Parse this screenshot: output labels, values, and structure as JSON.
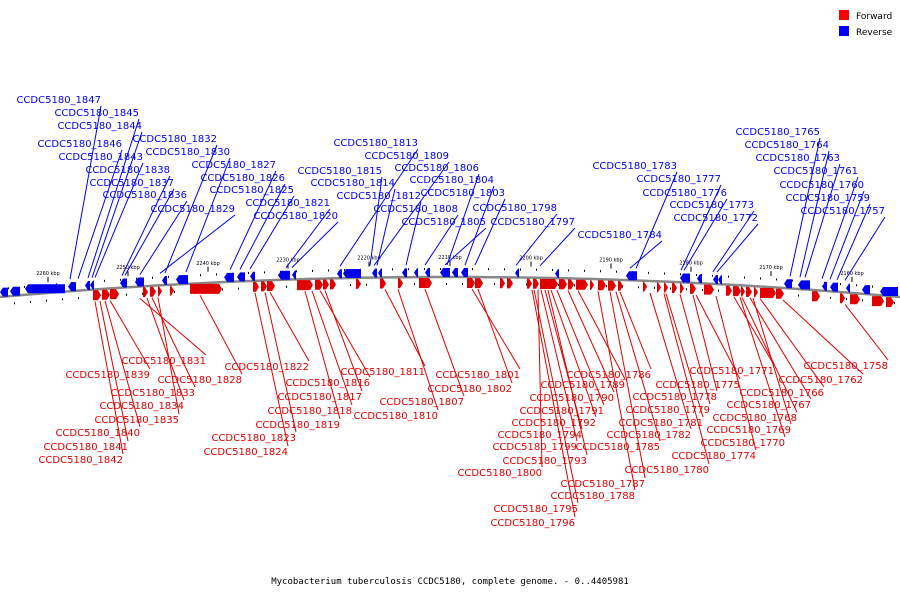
{
  "caption": "Mycobacterium tuberculosis CCDC5180, complete genome. - 0..4405981",
  "legend": [
    {
      "label": "Forward",
      "color": "#ff0000"
    },
    {
      "label": "Reverse",
      "color": "#0000ff"
    }
  ],
  "colors": {
    "forward": "#e00000",
    "reverse": "#0000ee",
    "backbone": "#888888"
  },
  "ticks": [
    "2260 kbp",
    "2250 kbp",
    "2240 kbp",
    "2230 kbp",
    "2220 kbp",
    "2210 kbp",
    "2200 kbp",
    "2190 kbp",
    "2180 kbp",
    "2170 kbp",
    "2160 kbp"
  ],
  "reverse_genes": [
    "CCDC5180_1847",
    "CCDC5180_1845",
    "CCDC5180_1844",
    "CCDC5180_1846",
    "CCDC5180_1843",
    "CCDC5180_1838",
    "CCDC5180_1837",
    "CCDC5180_1836",
    "CCDC5180_1832",
    "CCDC5180_1830",
    "CCDC5180_1829",
    "CCDC5180_1827",
    "CCDC5180_1826",
    "CCDC5180_1825",
    "CCDC5180_1821",
    "CCDC5180_1820",
    "CCDC5180_1813",
    "CCDC5180_1809",
    "CCDC5180_1815",
    "CCDC5180_1806",
    "CCDC5180_1814",
    "CCDC5180_1804",
    "CCDC5180_1812",
    "CCDC5180_1803",
    "CCDC5180_1808",
    "CCDC5180_1805",
    "CCDC5180_1798",
    "CCDC5180_1797",
    "CCDC5180_1783",
    "CCDC5180_1784",
    "CCDC5180_1777",
    "CCDC5180_1776",
    "CCDC5180_1773",
    "CCDC5180_1772",
    "CCDC5180_1765",
    "CCDC5180_1764",
    "CCDC5180_1763",
    "CCDC5180_1761",
    "CCDC5180_1760",
    "CCDC5180_1759",
    "CCDC5180_1757"
  ],
  "forward_genes": [
    "CCDC5180_1831",
    "CCDC5180_1839",
    "CCDC5180_1828",
    "CCDC5180_1833",
    "CCDC5180_1834",
    "CCDC5180_1835",
    "CCDC5180_1840",
    "CCDC5180_1841",
    "CCDC5180_1842",
    "CCDC5180_1822",
    "CCDC5180_1816",
    "CCDC5180_1817",
    "CCDC5180_1818",
    "CCDC5180_1819",
    "CCDC5180_1823",
    "CCDC5180_1824",
    "CCDC5180_1811",
    "CCDC5180_1807",
    "CCDC5180_1810",
    "CCDC5180_1801",
    "CCDC5180_1802",
    "CCDC5180_1786",
    "CCDC5180_1789",
    "CCDC5180_1790",
    "CCDC5180_1791",
    "CCDC5180_1792",
    "CCDC5180_1794",
    "CCDC5180_1799",
    "CCDC5180_1793",
    "CCDC5180_1800",
    "CCDC5180_1795",
    "CCDC5180_1796",
    "CCDC5180_1785",
    "CCDC5180_1787",
    "CCDC5180_1788",
    "CCDC5180_1782",
    "CCDC5180_1781",
    "CCDC5180_1779",
    "CCDC5180_1778",
    "CCDC5180_1775",
    "CCDC5180_1771",
    "CCDC5180_1780",
    "CCDC5180_1774",
    "CCDC5180_1770",
    "CCDC5180_1769",
    "CCDC5180_1768",
    "CCDC5180_1767",
    "CCDC5180_1766",
    "CCDC5180_1762",
    "CCDC5180_1758"
  ]
}
